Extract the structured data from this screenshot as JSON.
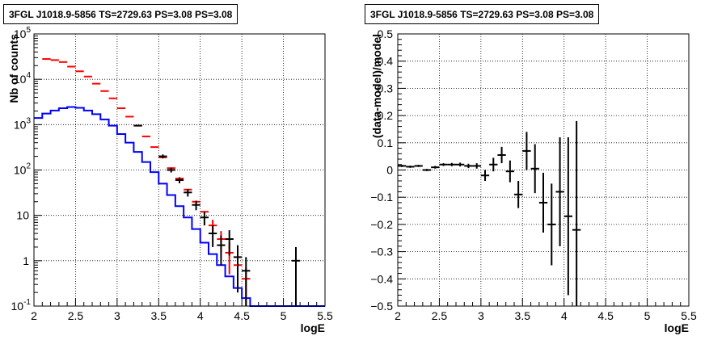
{
  "chart_data": [
    {
      "type": "line",
      "title": "3FGL J1018.9-5856 TS=2729.63 PS=3.08 PS=3.08",
      "xlabel": "logE",
      "ylabel": "Nb of counts",
      "xlim": [
        2,
        5.5
      ],
      "ylim": [
        0.1,
        100000
      ],
      "yscale": "log",
      "grid": true,
      "x_ticks": [
        "2",
        "2.5",
        "3",
        "3.5",
        "4",
        "4.5",
        "5",
        "5.5"
      ],
      "y_ticks": [
        "10^-1",
        "1",
        "10",
        "10^2",
        "10^3",
        "10^4",
        "10^5"
      ],
      "bin_edges": [
        2.0,
        2.1,
        2.2,
        2.3,
        2.4,
        2.5,
        2.6,
        2.7,
        2.8,
        2.9,
        3.0,
        3.1,
        3.2,
        3.3,
        3.4,
        3.5,
        3.6,
        3.7,
        3.8,
        3.9,
        4.0,
        4.1,
        4.2,
        4.3,
        4.4,
        4.5,
        4.6,
        4.7,
        4.8,
        4.9,
        5.0,
        5.1,
        5.2,
        5.3,
        5.4,
        5.5
      ],
      "series": [
        {
          "color": "#0000ff",
          "style": "step",
          "values": [
            1400,
            1750,
            2050,
            2300,
            2450,
            2350,
            2050,
            1700,
            1300,
            950,
            620,
            400,
            250,
            150,
            90,
            50,
            28,
            16,
            9,
            5,
            2.5,
            1.4,
            0.8,
            0.45,
            0.25,
            0.15,
            0.1,
            0.1,
            0.1,
            0.1,
            0.1,
            0.1,
            0.1,
            0.1,
            0.1
          ]
        },
        {
          "color": "#ff0000",
          "style": "errorbar",
          "x": [
            2.15,
            2.25,
            2.35,
            2.45,
            2.55,
            2.65,
            2.75,
            2.85,
            2.95,
            3.05,
            3.15,
            3.25,
            3.35,
            3.45,
            3.55,
            3.65,
            3.75,
            3.85,
            3.95,
            4.05,
            4.15,
            4.25,
            4.35,
            4.45,
            4.55
          ],
          "y": [
            28000,
            26500,
            24000,
            19000,
            15000,
            11500,
            8000,
            5500,
            3800,
            2300,
            1500,
            950,
            550,
            320,
            190,
            110,
            65,
            37,
            20,
            12,
            6,
            3,
            1.5,
            0.8,
            0.4
          ],
          "yerr": [
            0,
            0,
            0,
            0,
            0,
            0,
            0,
            0,
            0,
            0,
            0,
            0,
            0,
            0,
            0,
            0,
            0,
            0,
            0,
            0,
            2,
            1.5,
            1,
            0.6,
            0.3
          ]
        },
        {
          "color": "#000000",
          "style": "errorbar",
          "x": [
            3.25,
            3.55,
            3.65,
            3.75,
            3.85,
            3.95,
            4.05,
            4.15,
            4.25,
            4.35,
            4.45,
            4.55,
            5.15
          ],
          "y": [
            950,
            200,
            100,
            60,
            32,
            17,
            9,
            4,
            2.2,
            3,
            1.2,
            0.6,
            1
          ],
          "yerr": [
            0,
            20,
            12,
            9,
            6,
            4,
            3,
            2,
            1.4,
            1.7,
            1,
            0.6,
            1
          ]
        }
      ]
    },
    {
      "type": "scatter",
      "title": "3FGL J1018.9-5856 TS=2729.63 PS=3.08 PS=3.08",
      "xlabel": "logE",
      "ylabel": "(data-model)/model",
      "xlim": [
        2,
        5.5
      ],
      "ylim": [
        -0.5,
        0.5
      ],
      "grid": true,
      "x_ticks": [
        "2",
        "2.5",
        "3",
        "3.5",
        "4",
        "4.5",
        "5",
        "5.5"
      ],
      "y_ticks": [
        "−0.5",
        "−0.4",
        "−0.3",
        "−0.2",
        "−0.1",
        "0",
        "0.1",
        "0.2",
        "0.3",
        "0.4",
        "0.5"
      ],
      "series": [
        {
          "color": "#000000",
          "style": "errorbar",
          "x": [
            2.05,
            2.15,
            2.25,
            2.35,
            2.45,
            2.55,
            2.65,
            2.75,
            2.85,
            2.95,
            3.05,
            3.15,
            3.25,
            3.35,
            3.45,
            3.55,
            3.65,
            3.75,
            3.85,
            3.95,
            4.05,
            4.15
          ],
          "y": [
            0.015,
            0.012,
            0.015,
            0.0,
            0.01,
            0.02,
            0.02,
            0.02,
            0.015,
            0.015,
            -0.02,
            0.02,
            0.055,
            -0.005,
            -0.09,
            0.07,
            0.005,
            -0.12,
            -0.2,
            -0.08,
            -0.17,
            -0.22
          ],
          "yerr": [
            0.004,
            0.004,
            0.004,
            0.004,
            0.005,
            0.005,
            0.006,
            0.007,
            0.008,
            0.01,
            0.02,
            0.025,
            0.03,
            0.04,
            0.05,
            0.07,
            0.09,
            0.11,
            0.15,
            0.2,
            0.29,
            0.4
          ]
        }
      ]
    }
  ]
}
